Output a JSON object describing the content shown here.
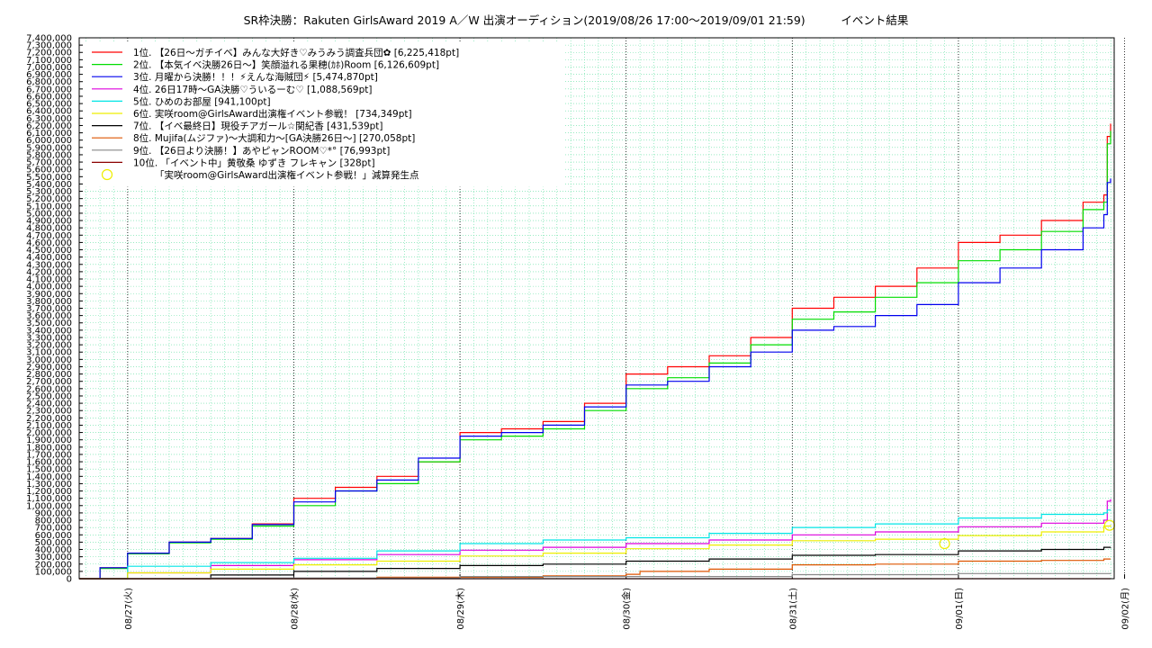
{
  "chart_data": {
    "type": "line",
    "title": "SR枠決勝：Rakuten GirlsAward 2019 A／W 出演オーディション(2019/08/26 17:00～2019/09/01 21:59)          イベント結果",
    "xlabel": "",
    "ylabel": "",
    "ylim": [
      0,
      7400000
    ],
    "xlim": [
      "2019-08-26 17:00",
      "2019-09-01 22:30"
    ],
    "y_tick_step": 100000,
    "y_tick_labels": [
      "0",
      "100,000",
      "200,000",
      "300,000",
      "400,000",
      "500,000",
      "600,000",
      "700,000",
      "800,000",
      "900,000",
      "1,000,000",
      "1,100,000",
      "1,200,000",
      "1,300,000",
      "1,400,000",
      "1,500,000",
      "1,600,000",
      "1,700,000",
      "1,800,000",
      "1,900,000",
      "2,000,000",
      "2,100,000",
      "2,200,000",
      "2,300,000",
      "2,400,000",
      "2,500,000",
      "2,600,000",
      "2,700,000",
      "2,800,000",
      "2,900,000",
      "3,000,000",
      "3,100,000",
      "3,200,000",
      "3,300,000",
      "3,400,000",
      "3,500,000",
      "3,600,000",
      "3,700,000",
      "3,800,000",
      "3,900,000",
      "4,000,000",
      "4,100,000",
      "4,200,000",
      "4,300,000",
      "4,400,000",
      "4,500,000",
      "4,600,000",
      "4,700,000",
      "4,800,000",
      "4,900,000",
      "5,000,000",
      "5,100,000",
      "5,200,000",
      "5,300,000",
      "5,400,000",
      "5,500,000",
      "5,600,000",
      "5,700,000",
      "5,800,000",
      "5,900,000",
      "6,000,000",
      "6,100,000",
      "6,200,000",
      "6,300,000",
      "6,400,000",
      "6,500,000",
      "6,600,000",
      "6,700,000",
      "6,800,000",
      "6,900,000",
      "7,000,000",
      "7,100,000",
      "7,200,000",
      "7,300,000",
      "7,400,000"
    ],
    "x_ticks": [
      {
        "t": "2019-08-27 00:00",
        "label": "08/27(火)"
      },
      {
        "t": "2019-08-28 00:00",
        "label": "08/28(水)"
      },
      {
        "t": "2019-08-29 00:00",
        "label": "08/29(木)"
      },
      {
        "t": "2019-08-30 00:00",
        "label": "08/30(金)"
      },
      {
        "t": "2019-08-31 00:00",
        "label": "08/31(土)"
      },
      {
        "t": "2019-09-01 00:00",
        "label": "09/01(日)"
      },
      {
        "t": "2019-09-02 00:00",
        "label": "09/02(月)"
      }
    ],
    "grid": true,
    "legend_position": "top-left",
    "series": [
      {
        "name": "1位. 【26日～ガチイベ】みんな大好き♡みうみう調査兵団✿ [6,225,418pt]",
        "color": "#ff0000",
        "points": [
          [
            "2019-08-26 17:00",
            0
          ],
          [
            "2019-08-26 20:00",
            150000
          ],
          [
            "2019-08-27 00:00",
            350000
          ],
          [
            "2019-08-27 06:00",
            500000
          ],
          [
            "2019-08-27 12:00",
            550000
          ],
          [
            "2019-08-27 18:00",
            750000
          ],
          [
            "2019-08-28 00:00",
            1100000
          ],
          [
            "2019-08-28 06:00",
            1250000
          ],
          [
            "2019-08-28 12:00",
            1400000
          ],
          [
            "2019-08-28 18:00",
            1600000
          ],
          [
            "2019-08-29 00:00",
            2000000
          ],
          [
            "2019-08-29 06:00",
            2050000
          ],
          [
            "2019-08-29 12:00",
            2150000
          ],
          [
            "2019-08-29 18:00",
            2400000
          ],
          [
            "2019-08-30 00:00",
            2800000
          ],
          [
            "2019-08-30 06:00",
            2900000
          ],
          [
            "2019-08-30 12:00",
            3050000
          ],
          [
            "2019-08-30 18:00",
            3300000
          ],
          [
            "2019-08-31 00:00",
            3700000
          ],
          [
            "2019-08-31 06:00",
            3850000
          ],
          [
            "2019-08-31 12:00",
            4000000
          ],
          [
            "2019-08-31 18:00",
            4250000
          ],
          [
            "2019-09-01 00:00",
            4600000
          ],
          [
            "2019-09-01 06:00",
            4700000
          ],
          [
            "2019-09-01 12:00",
            4900000
          ],
          [
            "2019-09-01 18:00",
            5150000
          ],
          [
            "2019-09-01 21:00",
            5250000
          ],
          [
            "2019-09-01 21:30",
            6050000
          ],
          [
            "2019-09-01 21:59",
            6225418
          ]
        ]
      },
      {
        "name": "2位. 【本気イベ決勝26日～】笑顔溢れる果穂(ｶﾎ)Room [6,126,609pt]",
        "color": "#00dd00",
        "points": [
          [
            "2019-08-26 17:00",
            0
          ],
          [
            "2019-08-26 20:00",
            140000
          ],
          [
            "2019-08-27 00:00",
            340000
          ],
          [
            "2019-08-27 06:00",
            490000
          ],
          [
            "2019-08-27 12:00",
            540000
          ],
          [
            "2019-08-27 18:00",
            720000
          ],
          [
            "2019-08-28 00:00",
            1000000
          ],
          [
            "2019-08-28 06:00",
            1200000
          ],
          [
            "2019-08-28 12:00",
            1300000
          ],
          [
            "2019-08-28 18:00",
            1600000
          ],
          [
            "2019-08-29 00:00",
            1900000
          ],
          [
            "2019-08-29 06:00",
            1950000
          ],
          [
            "2019-08-29 12:00",
            2050000
          ],
          [
            "2019-08-29 18:00",
            2300000
          ],
          [
            "2019-08-30 00:00",
            2600000
          ],
          [
            "2019-08-30 06:00",
            2750000
          ],
          [
            "2019-08-30 12:00",
            2950000
          ],
          [
            "2019-08-30 18:00",
            3200000
          ],
          [
            "2019-08-31 00:00",
            3550000
          ],
          [
            "2019-08-31 06:00",
            3650000
          ],
          [
            "2019-08-31 12:00",
            3850000
          ],
          [
            "2019-08-31 18:00",
            4050000
          ],
          [
            "2019-09-01 00:00",
            4350000
          ],
          [
            "2019-09-01 06:00",
            4500000
          ],
          [
            "2019-09-01 12:00",
            4750000
          ],
          [
            "2019-09-01 18:00",
            5050000
          ],
          [
            "2019-09-01 21:00",
            5150000
          ],
          [
            "2019-09-01 21:30",
            5950000
          ],
          [
            "2019-09-01 21:59",
            6126609
          ]
        ]
      },
      {
        "name": "3位. 月曜から決勝！！！⚡えんな海賊団⚡ [5,474,870pt]",
        "color": "#0000ee",
        "points": [
          [
            "2019-08-26 17:00",
            0
          ],
          [
            "2019-08-26 20:00",
            150000
          ],
          [
            "2019-08-27 00:00",
            350000
          ],
          [
            "2019-08-27 06:00",
            500000
          ],
          [
            "2019-08-27 12:00",
            550000
          ],
          [
            "2019-08-27 18:00",
            740000
          ],
          [
            "2019-08-28 00:00",
            1050000
          ],
          [
            "2019-08-28 06:00",
            1200000
          ],
          [
            "2019-08-28 12:00",
            1350000
          ],
          [
            "2019-08-28 18:00",
            1650000
          ],
          [
            "2019-08-29 00:00",
            1950000
          ],
          [
            "2019-08-29 06:00",
            2000000
          ],
          [
            "2019-08-29 12:00",
            2100000
          ],
          [
            "2019-08-29 18:00",
            2350000
          ],
          [
            "2019-08-30 00:00",
            2650000
          ],
          [
            "2019-08-30 06:00",
            2700000
          ],
          [
            "2019-08-30 12:00",
            2900000
          ],
          [
            "2019-08-30 18:00",
            3100000
          ],
          [
            "2019-08-31 00:00",
            3400000
          ],
          [
            "2019-08-31 06:00",
            3450000
          ],
          [
            "2019-08-31 12:00",
            3600000
          ],
          [
            "2019-08-31 18:00",
            3750000
          ],
          [
            "2019-09-01 00:00",
            4050000
          ],
          [
            "2019-09-01 06:00",
            4250000
          ],
          [
            "2019-09-01 12:00",
            4500000
          ],
          [
            "2019-09-01 18:00",
            4800000
          ],
          [
            "2019-09-01 21:00",
            4980000
          ],
          [
            "2019-09-01 21:30",
            5420000
          ],
          [
            "2019-09-01 21:59",
            5474870
          ]
        ]
      },
      {
        "name": "4位. 26日17時～GA決勝♡ういるーむ♡ [1,088,569pt]",
        "color": "#dd00dd",
        "points": [
          [
            "2019-08-26 17:00",
            0
          ],
          [
            "2019-08-27 00:00",
            80000
          ],
          [
            "2019-08-27 12:00",
            180000
          ],
          [
            "2019-08-28 00:00",
            260000
          ],
          [
            "2019-08-28 12:00",
            330000
          ],
          [
            "2019-08-29 00:00",
            390000
          ],
          [
            "2019-08-29 12:00",
            430000
          ],
          [
            "2019-08-30 00:00",
            480000
          ],
          [
            "2019-08-30 12:00",
            530000
          ],
          [
            "2019-08-31 00:00",
            600000
          ],
          [
            "2019-08-31 12:00",
            640000
          ],
          [
            "2019-09-01 00:00",
            710000
          ],
          [
            "2019-09-01 12:00",
            760000
          ],
          [
            "2019-09-01 21:00",
            800000
          ],
          [
            "2019-09-01 21:30",
            1060000
          ],
          [
            "2019-09-01 21:59",
            1088569
          ]
        ]
      },
      {
        "name": "5位. ひめのお部屋 [941,100pt]",
        "color": "#00e5e5",
        "points": [
          [
            "2019-08-26 17:00",
            0
          ],
          [
            "2019-08-27 00:00",
            170000
          ],
          [
            "2019-08-27 12:00",
            220000
          ],
          [
            "2019-08-28 00:00",
            280000
          ],
          [
            "2019-08-28 12:00",
            380000
          ],
          [
            "2019-08-29 00:00",
            480000
          ],
          [
            "2019-08-29 12:00",
            530000
          ],
          [
            "2019-08-30 00:00",
            560000
          ],
          [
            "2019-08-30 12:00",
            620000
          ],
          [
            "2019-08-31 00:00",
            700000
          ],
          [
            "2019-08-31 12:00",
            750000
          ],
          [
            "2019-09-01 00:00",
            830000
          ],
          [
            "2019-09-01 12:00",
            880000
          ],
          [
            "2019-09-01 21:00",
            900000
          ],
          [
            "2019-09-01 21:30",
            940000
          ],
          [
            "2019-09-01 21:59",
            941100
          ]
        ]
      },
      {
        "name": "6位. 実咲room@GirlsAward出演権イベント参戦！ [734,349pt]",
        "color": "#eeee00",
        "points": [
          [
            "2019-08-26 17:00",
            0
          ],
          [
            "2019-08-27 00:00",
            80000
          ],
          [
            "2019-08-27 12:00",
            130000
          ],
          [
            "2019-08-28 00:00",
            190000
          ],
          [
            "2019-08-28 12:00",
            240000
          ],
          [
            "2019-08-29 00:00",
            310000
          ],
          [
            "2019-08-29 12:00",
            350000
          ],
          [
            "2019-08-30 00:00",
            410000
          ],
          [
            "2019-08-30 12:00",
            460000
          ],
          [
            "2019-08-31 00:00",
            520000
          ],
          [
            "2019-08-31 12:00",
            540000
          ],
          [
            "2019-09-01 00:00",
            590000
          ],
          [
            "2019-09-01 12:00",
            640000
          ],
          [
            "2019-09-01 21:00",
            720000
          ],
          [
            "2019-09-01 21:59",
            734349
          ]
        ]
      },
      {
        "name": "7位. 【イベ最終日】現役チアガール☆関紀香 [431,539pt]",
        "color": "#000000",
        "points": [
          [
            "2019-08-26 17:00",
            0
          ],
          [
            "2019-08-27 12:00",
            50000
          ],
          [
            "2019-08-28 00:00",
            100000
          ],
          [
            "2019-08-28 12:00",
            140000
          ],
          [
            "2019-08-29 00:00",
            180000
          ],
          [
            "2019-08-29 12:00",
            200000
          ],
          [
            "2019-08-30 00:00",
            240000
          ],
          [
            "2019-08-30 12:00",
            270000
          ],
          [
            "2019-08-31 00:00",
            320000
          ],
          [
            "2019-08-31 12:00",
            330000
          ],
          [
            "2019-09-01 00:00",
            380000
          ],
          [
            "2019-09-01 12:00",
            400000
          ],
          [
            "2019-09-01 21:00",
            430000
          ],
          [
            "2019-09-01 21:59",
            431539
          ]
        ]
      },
      {
        "name": "8位. Mujifa(ムジファ)～大調和力～[GA決勝26日～] [270,058pt]",
        "color": "#dd5500",
        "points": [
          [
            "2019-08-26 17:00",
            0
          ],
          [
            "2019-08-28 12:00",
            20000
          ],
          [
            "2019-08-29 12:00",
            40000
          ],
          [
            "2019-08-30 00:00",
            60000
          ],
          [
            "2019-08-30 02:00",
            100000
          ],
          [
            "2019-08-30 12:00",
            130000
          ],
          [
            "2019-08-31 00:00",
            190000
          ],
          [
            "2019-08-31 12:00",
            200000
          ],
          [
            "2019-09-01 00:00",
            240000
          ],
          [
            "2019-09-01 12:00",
            250000
          ],
          [
            "2019-09-01 21:00",
            270000
          ],
          [
            "2019-09-01 21:59",
            270058
          ]
        ]
      },
      {
        "name": "9位. 【26日より決勝！】あやピャンROOM♡*°  [76,993pt]",
        "color": "#888888",
        "points": [
          [
            "2019-08-26 17:00",
            0
          ],
          [
            "2019-08-27 12:00",
            10000
          ],
          [
            "2019-08-29 00:00",
            30000
          ],
          [
            "2019-08-31 00:00",
            55000
          ],
          [
            "2019-09-01 00:00",
            70000
          ],
          [
            "2019-09-01 21:59",
            76993
          ]
        ]
      },
      {
        "name": "10位. 「イベント中」黄敬桑 ゆずき フレキャン [328pt]",
        "color": "#8b0000",
        "points": [
          [
            "2019-08-26 17:00",
            0
          ],
          [
            "2019-09-01 21:59",
            328
          ]
        ]
      }
    ],
    "annotation": {
      "label": "「実咲room@GirlsAward出演権イベント参戦！」減算発生点",
      "color": "#eeee00",
      "points": [
        [
          "2019-08-31 22:00",
          480000
        ],
        [
          "2019-09-01 21:50",
          730000
        ]
      ]
    }
  }
}
